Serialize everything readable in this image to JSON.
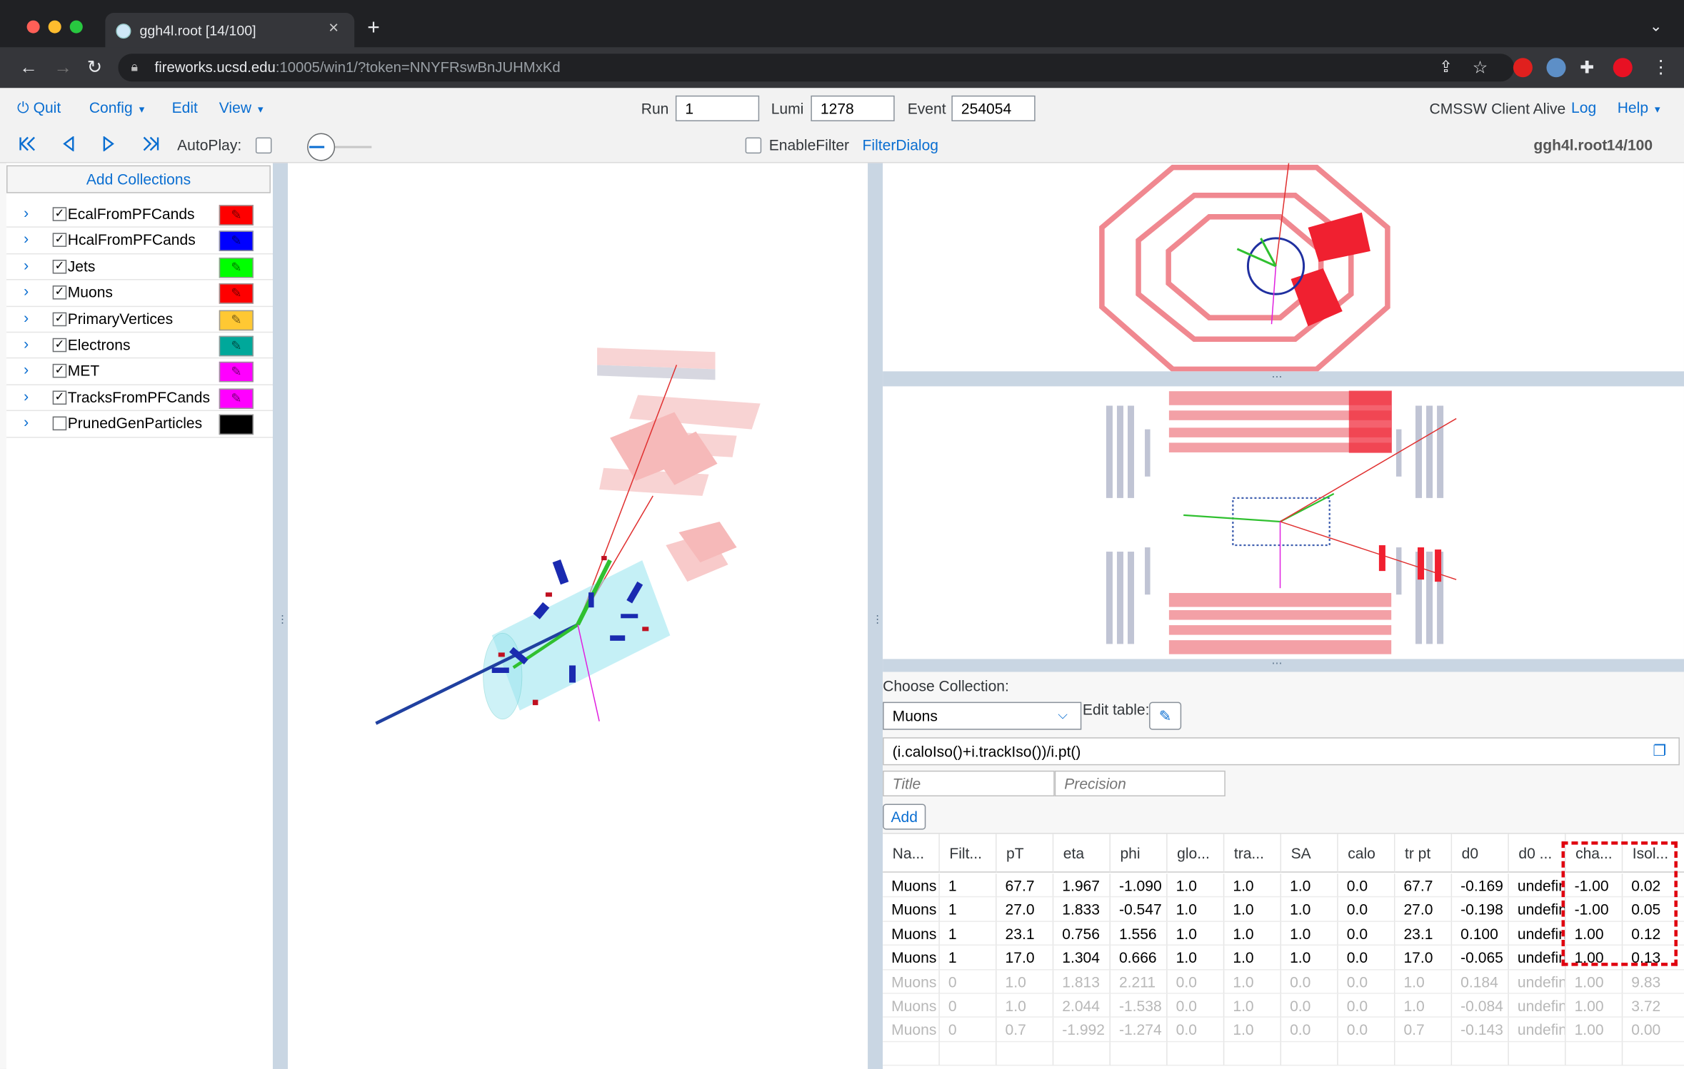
{
  "browser": {
    "tab_title": "ggh4l.root [14/100]",
    "url_host": "fireworks.ucsd.edu",
    "url_rest": ":10005/win1/?token=NNYFRswBnJUHMxKd"
  },
  "menubar": {
    "quit": "Quit",
    "config": "Config",
    "edit": "Edit",
    "view": "View",
    "run_label": "Run",
    "run_value": "1",
    "lumi_label": "Lumi",
    "lumi_value": "1278",
    "event_label": "Event",
    "event_value": "254054",
    "status": "CMSSW Client Alive",
    "log": "Log",
    "help": "Help"
  },
  "controls": {
    "autoplay": "AutoPlay:",
    "enable_filter": "EnableFilter",
    "filter_dialog": "FilterDialog",
    "file_name": "ggh4l.root",
    "file_progress": "14/100"
  },
  "sidebar": {
    "add_collections": "Add Collections",
    "collections": [
      {
        "name": "EcalFromPFCands",
        "checked": true,
        "color": "#ff0000"
      },
      {
        "name": "HcalFromPFCands",
        "checked": true,
        "color": "#0000ff"
      },
      {
        "name": "Jets",
        "checked": true,
        "color": "#00ff00"
      },
      {
        "name": "Muons",
        "checked": true,
        "color": "#ff0000"
      },
      {
        "name": "PrimaryVertices",
        "checked": true,
        "color": "#ffc833"
      },
      {
        "name": "Electrons",
        "checked": true,
        "color": "#00a89a"
      },
      {
        "name": "MET",
        "checked": true,
        "color": "#ff00ff"
      },
      {
        "name": "TracksFromPFCands",
        "checked": true,
        "color": "#ff00ff"
      },
      {
        "name": "PrunedGenParticles",
        "checked": false,
        "color": "#000000"
      }
    ]
  },
  "table_panel": {
    "choose_collection": "Choose Collection:",
    "selected_collection": "Muons",
    "edit_table": "Edit table:",
    "expression": "(i.caloIso()+i.trackIso())/i.pt()",
    "title_placeholder": "Title",
    "precision_placeholder": "Precision",
    "add_button": "Add",
    "columns": [
      "Na...",
      "Filt...",
      "pT",
      "eta",
      "phi",
      "glo...",
      "tra...",
      "SA",
      "calo",
      "tr pt",
      "d0",
      "d0 ...",
      "cha...",
      "Isol..."
    ],
    "rows": [
      {
        "active": true,
        "cells": [
          "Muons",
          "1",
          "67.7",
          "1.967",
          "-1.090",
          "1.0",
          "1.0",
          "1.0",
          "0.0",
          "67.7",
          "-0.169",
          "undefin",
          "-1.00",
          "0.02"
        ]
      },
      {
        "active": true,
        "cells": [
          "Muons",
          "1",
          "27.0",
          "1.833",
          "-0.547",
          "1.0",
          "1.0",
          "1.0",
          "0.0",
          "27.0",
          "-0.198",
          "undefin",
          "-1.00",
          "0.05"
        ]
      },
      {
        "active": true,
        "cells": [
          "Muons",
          "1",
          "23.1",
          "0.756",
          "1.556",
          "1.0",
          "1.0",
          "1.0",
          "0.0",
          "23.1",
          "0.100",
          "undefin",
          "1.00",
          "0.12"
        ]
      },
      {
        "active": true,
        "cells": [
          "Muons",
          "1",
          "17.0",
          "1.304",
          "0.666",
          "1.0",
          "1.0",
          "1.0",
          "0.0",
          "17.0",
          "-0.065",
          "undefin",
          "1.00",
          "0.13"
        ]
      },
      {
        "active": false,
        "cells": [
          "Muons",
          "0",
          "1.0",
          "1.813",
          "2.211",
          "0.0",
          "1.0",
          "0.0",
          "0.0",
          "1.0",
          "0.184",
          "undefin",
          "1.00",
          "9.83"
        ]
      },
      {
        "active": false,
        "cells": [
          "Muons",
          "0",
          "1.0",
          "2.044",
          "-1.538",
          "0.0",
          "1.0",
          "0.0",
          "0.0",
          "1.0",
          "-0.084",
          "undefin",
          "1.00",
          "3.72"
        ]
      },
      {
        "active": false,
        "cells": [
          "Muons",
          "0",
          "0.7",
          "-1.992",
          "-1.274",
          "0.0",
          "1.0",
          "0.0",
          "0.0",
          "0.7",
          "-0.143",
          "undefin",
          "1.00",
          "0.00"
        ]
      }
    ]
  }
}
